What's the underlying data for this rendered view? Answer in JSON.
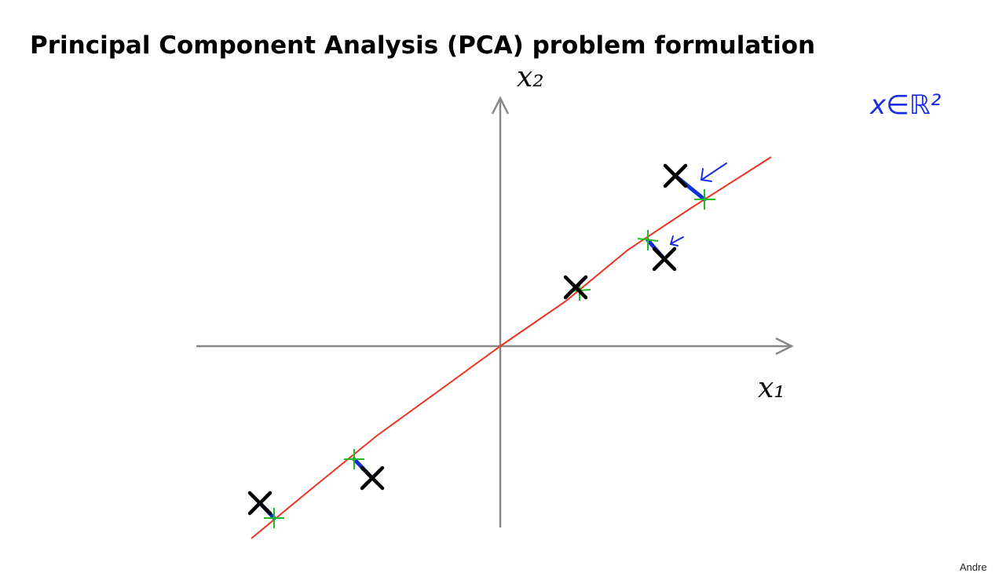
{
  "title": "Principal Component Analysis (PCA) problem formulation",
  "axes": {
    "y_label": "x₂",
    "x_label": "x₁"
  },
  "annotation": "x∈ℝ²",
  "footer": "Andre"
}
